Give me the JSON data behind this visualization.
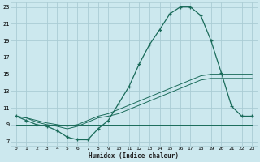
{
  "xlabel": "Humidex (Indice chaleur)",
  "bg_color": "#cce8ee",
  "grid_color": "#aaccd4",
  "line_color": "#1a6b5a",
  "xlim": [
    -0.5,
    23.5
  ],
  "ylim": [
    6.5,
    23.5
  ],
  "xticks": [
    0,
    1,
    2,
    3,
    4,
    5,
    6,
    7,
    8,
    9,
    10,
    11,
    12,
    13,
    14,
    15,
    16,
    17,
    18,
    19,
    20,
    21,
    22,
    23
  ],
  "yticks": [
    7,
    9,
    11,
    13,
    15,
    17,
    19,
    21,
    23
  ],
  "line_main_x": [
    0,
    1,
    2,
    3,
    4,
    5,
    6,
    7,
    8,
    9,
    10,
    11,
    12,
    13,
    14,
    15,
    16,
    17,
    18,
    19,
    20,
    21,
    22,
    23
  ],
  "line_main_y": [
    10.0,
    9.5,
    9.0,
    8.8,
    8.3,
    7.5,
    7.2,
    7.2,
    8.5,
    9.5,
    11.5,
    13.5,
    16.2,
    18.5,
    20.3,
    22.2,
    23.0,
    23.0,
    22.0,
    19.0,
    15.2,
    11.2,
    10.0,
    10.0
  ],
  "line_diag1_x": [
    0,
    1,
    2,
    3,
    4,
    5,
    6,
    7,
    8,
    9,
    10,
    11,
    12,
    13,
    14,
    15,
    16,
    17,
    18,
    19,
    20,
    21,
    22,
    23
  ],
  "line_diag1_y": [
    10.0,
    9.8,
    9.5,
    9.2,
    9.0,
    8.8,
    9.0,
    9.5,
    10.0,
    10.3,
    10.8,
    11.3,
    11.8,
    12.3,
    12.8,
    13.3,
    13.8,
    14.3,
    14.8,
    15.0,
    15.0,
    15.0,
    15.0,
    15.0
  ],
  "line_diag2_x": [
    0,
    1,
    2,
    3,
    4,
    5,
    6,
    7,
    8,
    9,
    10,
    11,
    12,
    13,
    14,
    15,
    16,
    17,
    18,
    19,
    20,
    21,
    22,
    23
  ],
  "line_diag2_y": [
    10.0,
    9.8,
    9.3,
    9.0,
    8.8,
    8.5,
    8.8,
    9.3,
    9.8,
    10.0,
    10.3,
    10.8,
    11.3,
    11.8,
    12.3,
    12.8,
    13.3,
    13.8,
    14.3,
    14.5,
    14.5,
    14.5,
    14.5,
    14.5
  ],
  "line_flat_x": [
    0,
    1,
    2,
    3,
    4,
    5,
    6,
    7,
    8,
    9,
    10,
    11,
    12,
    13,
    14,
    15,
    16,
    17,
    18,
    19,
    20,
    21,
    22,
    23
  ],
  "line_flat_y": [
    9.0,
    9.0,
    9.0,
    9.0,
    9.0,
    9.0,
    9.0,
    9.0,
    9.0,
    9.0,
    9.0,
    9.0,
    9.0,
    9.0,
    9.0,
    9.0,
    9.0,
    9.0,
    9.0,
    9.0,
    9.0,
    9.0,
    9.0,
    9.0
  ],
  "markers_x": [
    0,
    1,
    2,
    3,
    4,
    5,
    6,
    7,
    8,
    9,
    10,
    11,
    12,
    13,
    14,
    15,
    16,
    17,
    18,
    19,
    20,
    21,
    22,
    23
  ],
  "markers_y": [
    10.0,
    9.5,
    9.0,
    8.8,
    8.3,
    7.5,
    7.2,
    7.2,
    8.5,
    9.5,
    11.5,
    13.5,
    16.2,
    18.5,
    20.3,
    22.2,
    23.0,
    23.0,
    22.0,
    19.0,
    15.2,
    11.2,
    10.0,
    10.0
  ]
}
